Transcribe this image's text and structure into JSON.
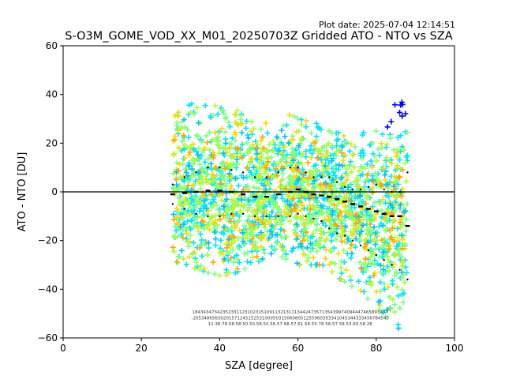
{
  "plot_date": "Plot date: 2025-07-04 12:14:51",
  "chart_data": {
    "type": "scatter",
    "title": "S-O3M_GOME_VOD_XX_M01_20250703Z Gridded ATO - NTO vs SZA",
    "xlabel": "SZA [degree]",
    "ylabel": "ATO - NTO [DU]",
    "xlim": [
      0,
      100
    ],
    "ylim": [
      -60,
      60
    ],
    "xticks": [
      "0",
      "20",
      "40",
      "60",
      "80",
      "100"
    ],
    "yticks": [
      "60",
      "40",
      "20",
      "0",
      "−20",
      "−40",
      "−60"
    ],
    "grid": false,
    "reference_line_y": 0,
    "colors": {
      "scatter": [
        "#00e5ff",
        "#7fff7f",
        "#ffd700",
        "#adff2f",
        "#00bfff",
        "#ffa500",
        "#0000ff"
      ],
      "mean_marker": "#000000",
      "std_marker": "#000000",
      "reference_line": "#000000"
    },
    "scatter_envelope": {
      "sza": [
        28,
        30,
        35,
        40,
        45,
        50,
        55,
        58,
        60,
        65,
        70,
        75,
        80,
        83,
        85,
        87,
        88
      ],
      "upper": [
        33,
        35,
        37,
        37,
        33,
        28,
        30,
        32,
        30,
        28,
        27,
        24,
        25,
        30,
        48,
        34,
        30
      ],
      "lower": [
        -28,
        -30,
        -32,
        -35,
        -33,
        -30,
        -27,
        -28,
        -30,
        -30,
        -35,
        -40,
        -48,
        -52,
        -55,
        -58,
        -59
      ]
    },
    "mean": {
      "sza": [
        28,
        31,
        34,
        37,
        40,
        43,
        46,
        49,
        52,
        55,
        58,
        60,
        62,
        64,
        66,
        68,
        70,
        72,
        74,
        76,
        78,
        80,
        82,
        84,
        86,
        88
      ],
      "values": [
        -1,
        -0.5,
        0,
        0.5,
        0.5,
        0,
        -1,
        -2,
        -2,
        -1,
        0,
        1,
        0,
        -1,
        -1.5,
        -2,
        -3,
        -4,
        -5,
        -6,
        -7,
        -8,
        -9,
        -10,
        -10,
        -14
      ]
    },
    "std_upper": {
      "sza": [
        28,
        31,
        34,
        37,
        40,
        43,
        46,
        49,
        52,
        55,
        58,
        60,
        62,
        64,
        66,
        68,
        70,
        72,
        74,
        76,
        78,
        80,
        82,
        84,
        86,
        88
      ],
      "values": [
        3,
        6,
        8,
        10,
        10,
        9,
        8,
        6,
        6,
        8,
        10,
        10,
        8,
        6,
        6,
        6,
        4,
        2,
        1,
        1,
        2,
        3,
        1,
        0,
        0,
        8
      ]
    },
    "std_lower": {
      "sza": [
        28,
        31,
        34,
        37,
        40,
        43,
        46,
        49,
        52,
        55,
        58,
        60,
        62,
        64,
        66,
        68,
        70,
        72,
        74,
        76,
        78,
        80,
        82,
        84,
        86,
        88
      ],
      "values": [
        -5,
        -7,
        -9,
        -10,
        -10,
        -9,
        -9,
        -10,
        -10,
        -10,
        -10,
        -9,
        -10,
        -11,
        -12,
        -15,
        -17,
        -18,
        -20,
        -22,
        -24,
        -26,
        -28,
        -30,
        -32,
        -36
      ]
    },
    "annotation_rows": [
      "18434347342352331123102315109113213111344247357135439974094447465893337",
      "-20534865630201571245152531000503150608051255960393341045344333456784543",
      "11.38.78.58.58.50.50.58.50.56.57.68.57.61.58.55.78.56.57.58.53.60.58.28"
    ]
  }
}
